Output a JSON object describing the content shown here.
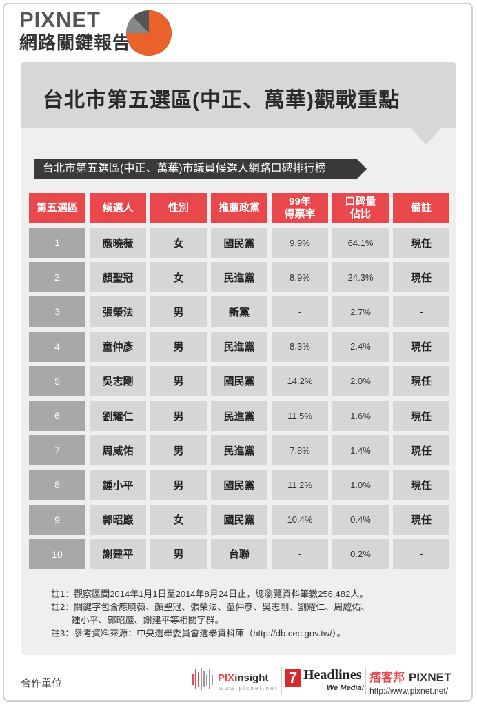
{
  "brand": {
    "line1": "PIXNET",
    "line2": "網路關鍵報告"
  },
  "title": "台北市第五選區(中正、萬華)觀戰重點",
  "subtitle": "台北市第五選區(中正、萬華)市議員候選人網路口碑排行榜",
  "colors": {
    "accent": "#e8474b",
    "header_gray": "#d7d7d7",
    "number_cell": "#a8a8a8",
    "cell": "#d6d6d6"
  },
  "table": {
    "headers": [
      "第五選區",
      "候選人",
      "性別",
      "推薦政黨",
      "99年\n得票率",
      "口碑量\n佔比",
      "備註"
    ],
    "rows": [
      [
        "1",
        "應曉薇",
        "女",
        "國民黨",
        "9.9%",
        "64.1%",
        "現任"
      ],
      [
        "2",
        "顏聖冠",
        "女",
        "民進黨",
        "8.9%",
        "24.3%",
        "現任"
      ],
      [
        "3",
        "張榮法",
        "男",
        "新黨",
        "-",
        "2.7%",
        "-"
      ],
      [
        "4",
        "童仲彥",
        "男",
        "民進黨",
        "8.3%",
        "2.4%",
        "現任"
      ],
      [
        "5",
        "吳志剛",
        "男",
        "國民黨",
        "14.2%",
        "2.0%",
        "現任"
      ],
      [
        "6",
        "劉耀仁",
        "男",
        "民進黨",
        "11.5%",
        "1.6%",
        "現任"
      ],
      [
        "7",
        "周威佑",
        "男",
        "民進黨",
        "7.8%",
        "1.4%",
        "現任"
      ],
      [
        "8",
        "鍾小平",
        "男",
        "國民黨",
        "11.2%",
        "1.0%",
        "現任"
      ],
      [
        "9",
        "郭昭巖",
        "女",
        "國民黨",
        "10.4%",
        "0.4%",
        "現任"
      ],
      [
        "10",
        "謝建平",
        "男",
        "台聯",
        "-",
        "0.2%",
        "-"
      ]
    ]
  },
  "notes": [
    "註1：觀察區間2014年1月1日至2014年8月24日止，總瀏覽資料筆數256,482人。",
    "註2：關鍵字包含應曉薇、顏聖冠、張榮法、童仲彥、吳志剛、劉耀仁、周威佑、",
    "　　 鍾小平、郭昭巖、謝建平等相關字群。",
    "註3：參考資料來源：中央選舉委員會選舉資料庫（http://db.cec.gov.tw/）。"
  ],
  "footer": {
    "label": "合作單位",
    "pixinsight": {
      "pre": "PIX",
      "post": "insight",
      "url": "w w w . p i x n e t . n e t"
    },
    "headlines": {
      "num": "7",
      "word": "Headlines",
      "tagline": "We Media!"
    },
    "pixnet": {
      "kp": "痞客邦",
      "name": "PIXNET",
      "url": "http://www.pixnet.net/"
    }
  }
}
